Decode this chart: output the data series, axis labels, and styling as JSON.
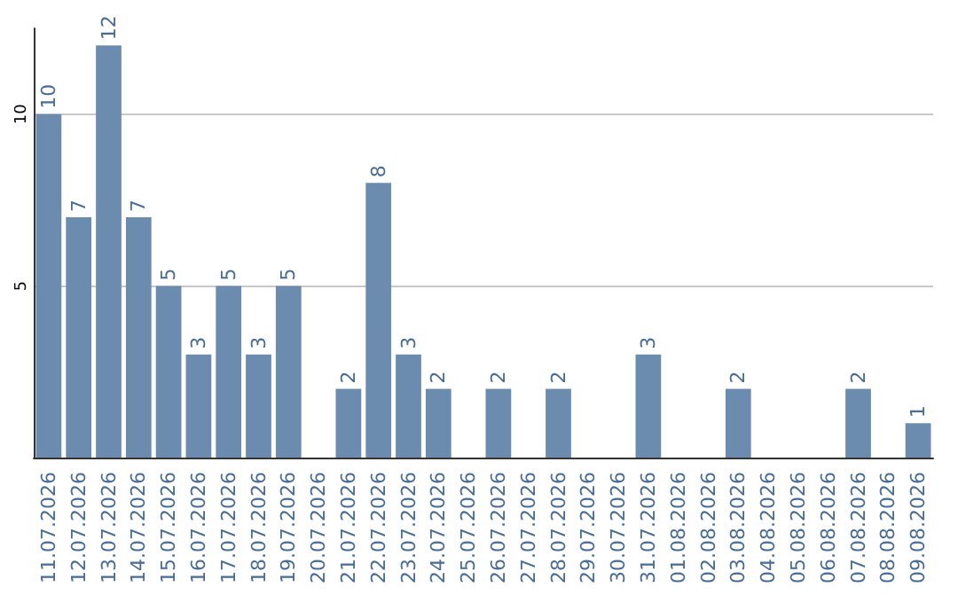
{
  "chart_data": {
    "type": "bar",
    "categories": [
      "11.07.2026",
      "12.07.2026",
      "13.07.2026",
      "14.07.2026",
      "15.07.2026",
      "16.07.2026",
      "17.07.2026",
      "18.07.2026",
      "19.07.2026",
      "20.07.2026",
      "21.07.2026",
      "22.07.2026",
      "23.07.2026",
      "24.07.2026",
      "25.07.2026",
      "26.07.2026",
      "27.07.2026",
      "28.07.2026",
      "29.07.2026",
      "30.07.2026",
      "31.07.2026",
      "01.08.2026",
      "02.08.2026",
      "03.08.2026",
      "04.08.2026",
      "05.08.2026",
      "06.08.2026",
      "07.08.2026",
      "08.08.2026",
      "09.08.2026"
    ],
    "values": [
      10,
      7,
      12,
      7,
      5,
      3,
      5,
      3,
      5,
      0,
      2,
      8,
      3,
      2,
      0,
      2,
      0,
      2,
      0,
      0,
      3,
      0,
      0,
      2,
      0,
      0,
      0,
      2,
      0,
      1
    ],
    "value_labels": [
      "10",
      "7",
      "12",
      "7",
      "5",
      "3",
      "5",
      "3",
      "5",
      null,
      "2",
      "8",
      "3",
      "2",
      null,
      "2",
      null,
      "2",
      null,
      null,
      "3",
      null,
      null,
      "2",
      null,
      null,
      null,
      "2",
      null,
      "1"
    ],
    "color": "#6b8cae",
    "ylim": [
      0,
      12.5
    ],
    "yticks": [
      5,
      10
    ],
    "grid": "y"
  }
}
